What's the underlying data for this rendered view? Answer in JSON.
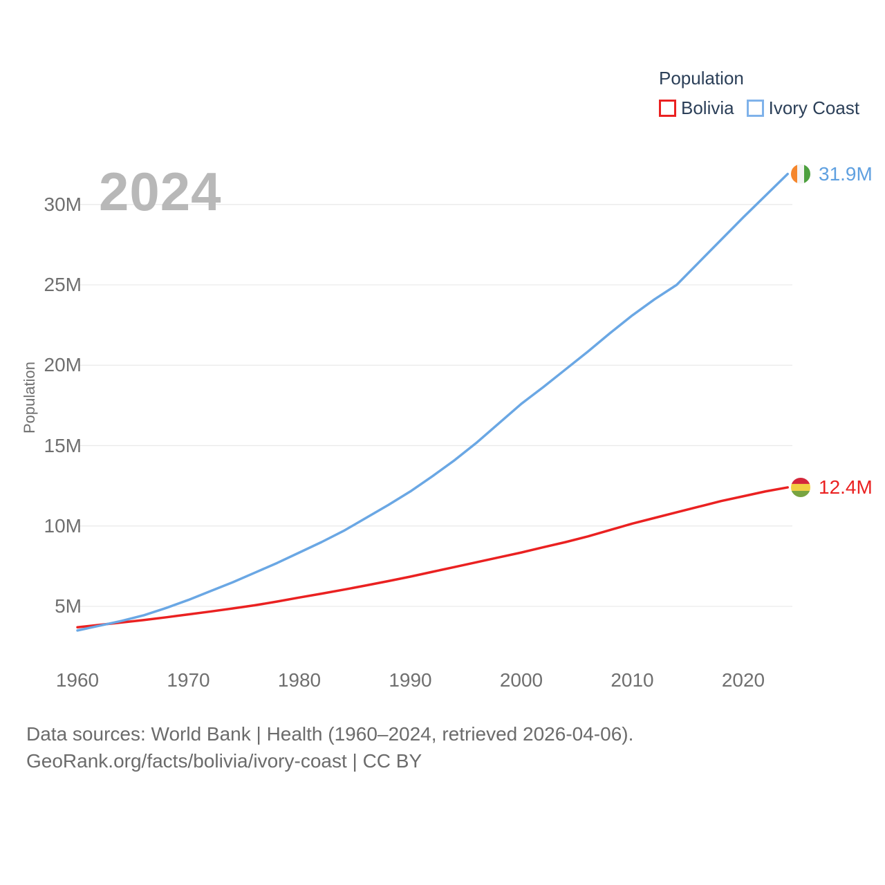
{
  "watermark_year": "2024",
  "legend": {
    "title": "Population",
    "items": [
      {
        "label": "Bolivia",
        "color": "#ea2121"
      },
      {
        "label": "Ivory Coast",
        "color": "#7fb2ea"
      }
    ]
  },
  "y_axis": {
    "title": "Population",
    "tick_labels": [
      "5M",
      "10M",
      "15M",
      "20M",
      "25M",
      "30M"
    ],
    "tick_values": [
      5,
      10,
      15,
      20,
      25,
      30
    ]
  },
  "x_axis": {
    "tick_labels": [
      "1960",
      "1970",
      "1980",
      "1990",
      "2000",
      "2010",
      "2020"
    ],
    "tick_values": [
      1960,
      1970,
      1980,
      1990,
      2000,
      2010,
      2020
    ]
  },
  "end_labels": {
    "ivory_coast": "31.9M",
    "bolivia": "12.4M"
  },
  "footer": {
    "line1": "Data sources: World Bank | Health (1960–2024, retrieved 2026-04-06).",
    "line2": "GeoRank.org/facts/bolivia/ivory-coast | CC BY"
  },
  "colors": {
    "bolivia_line": "#ea2121",
    "ivory_line": "#6aa7e4",
    "bolivia_label_text": "#ea2121",
    "ivory_label_text": "#5fa0e0",
    "grid": "#e9e9e9",
    "axis_text": "#6f6f6f",
    "legend_text": "#2b3f58",
    "watermark": "#b8b8b8",
    "flag_ivory_coast": {
      "orange": "#f5862c",
      "white": "#f4f4f4",
      "green": "#4da03f"
    },
    "flag_bolivia": {
      "red": "#d4263a",
      "yellow": "#f2ce42",
      "green": "#78a441"
    }
  },
  "chart_data": {
    "type": "line",
    "title": "Population",
    "xlabel": "",
    "ylabel": "Population",
    "x_range": [
      1960,
      2024
    ],
    "ylim": [
      2.5,
      33
    ],
    "grid": "horizontal",
    "legend_position": "top-right",
    "x": [
      1960,
      1962,
      1964,
      1966,
      1968,
      1970,
      1972,
      1974,
      1976,
      1978,
      1980,
      1982,
      1984,
      1986,
      1988,
      1990,
      1992,
      1994,
      1996,
      1998,
      2000,
      2002,
      2004,
      2006,
      2008,
      2010,
      2012,
      2014,
      2016,
      2018,
      2020,
      2022,
      2024
    ],
    "series": [
      {
        "name": "Bolivia",
        "color": "#ea2121",
        "unit": "millions",
        "end_value_label": "12.4M",
        "values": [
          3.7,
          3.85,
          4.0,
          4.15,
          4.32,
          4.5,
          4.68,
          4.87,
          5.07,
          5.3,
          5.55,
          5.79,
          6.04,
          6.3,
          6.57,
          6.85,
          7.15,
          7.45,
          7.75,
          8.05,
          8.35,
          8.68,
          9.0,
          9.35,
          9.75,
          10.15,
          10.5,
          10.85,
          11.2,
          11.55,
          11.85,
          12.15,
          12.4
        ]
      },
      {
        "name": "Ivory Coast",
        "color": "#6aa7e4",
        "unit": "millions",
        "end_value_label": "31.9M",
        "values": [
          3.5,
          3.8,
          4.1,
          4.45,
          4.9,
          5.4,
          5.95,
          6.5,
          7.1,
          7.7,
          8.35,
          9.0,
          9.7,
          10.5,
          11.3,
          12.15,
          13.1,
          14.1,
          15.2,
          16.4,
          17.6,
          18.65,
          19.75,
          20.85,
          22.0,
          23.1,
          24.1,
          25.0,
          26.4,
          27.8,
          29.2,
          30.55,
          31.9
        ]
      }
    ]
  }
}
